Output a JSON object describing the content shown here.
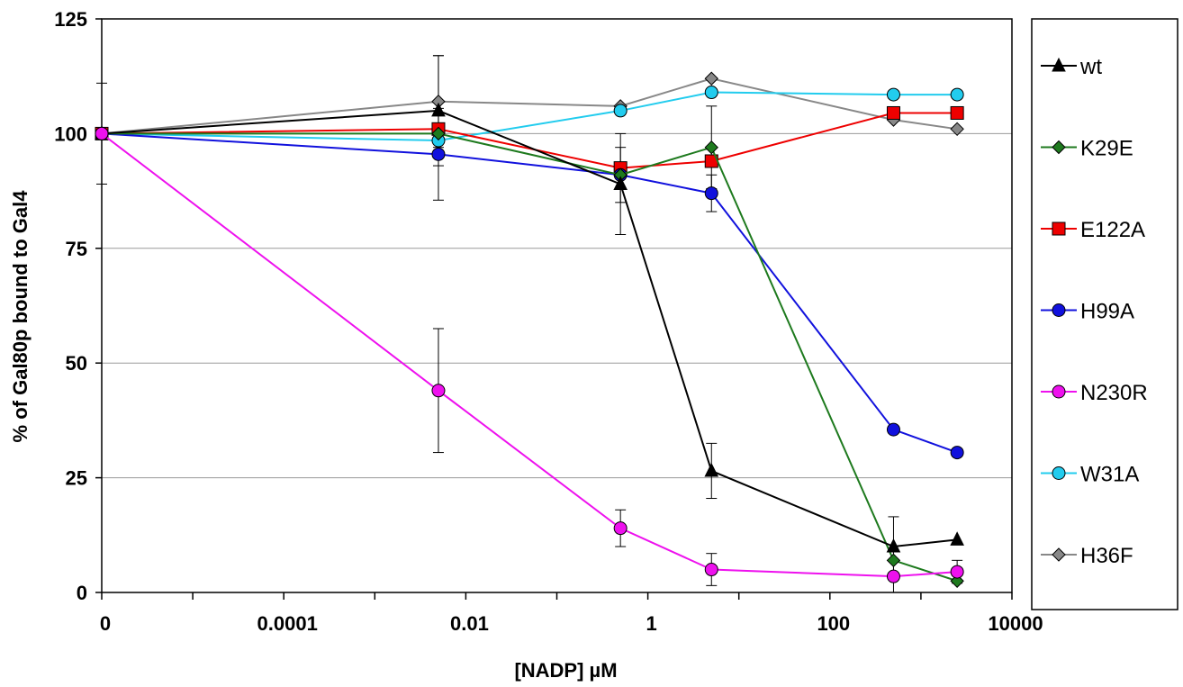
{
  "chart_data": {
    "type": "line",
    "title": "",
    "xlabel": "[NADP] µM",
    "ylabel": "% of Gal80p bound to Gal4",
    "x_scale": "log",
    "xlim": [
      1e-06,
      10000
    ],
    "ylim": [
      0,
      125
    ],
    "x_tick_values": [
      1e-06,
      0.0001,
      0.01,
      1,
      100,
      10000
    ],
    "x_tick_labels": [
      "0",
      "0.0001",
      "0.01",
      "1",
      "100",
      "10000"
    ],
    "y_tick_values": [
      0,
      25,
      50,
      75,
      100,
      125
    ],
    "y_tick_labels": [
      "0",
      "25",
      "50",
      "75",
      "100",
      "125"
    ],
    "grid": "horizontal",
    "legend_position": "right",
    "x": [
      1e-06,
      0.005,
      0.5,
      5,
      500,
      2500
    ],
    "series": [
      {
        "name": "wt",
        "color": "#000000",
        "marker": "triangle",
        "values": [
          100,
          105,
          89,
          26.5,
          10,
          11.5
        ],
        "errors": [
          11,
          12,
          11,
          6,
          6.5,
          null
        ]
      },
      {
        "name": "K29E",
        "color": "#1e7a1e",
        "marker": "diamond",
        "values": [
          100,
          100,
          91,
          97,
          7,
          2.5
        ],
        "errors": [
          null,
          null,
          null,
          9,
          null,
          null
        ]
      },
      {
        "name": "E122A",
        "color": "#ee0000",
        "marker": "square",
        "values": [
          100,
          101,
          92.5,
          94,
          104.5,
          104.5
        ],
        "errors": [
          null,
          null,
          null,
          null,
          null,
          null
        ]
      },
      {
        "name": "H99A",
        "color": "#1111dd",
        "marker": "circle",
        "values": [
          100,
          95.5,
          91,
          87,
          35.5,
          30.5
        ],
        "errors": [
          null,
          10,
          6,
          4,
          null,
          null
        ]
      },
      {
        "name": "N230R",
        "color": "#ee11ee",
        "marker": "circle",
        "values": [
          100,
          44,
          14,
          5,
          3.5,
          4.5
        ],
        "errors": [
          null,
          13.5,
          4,
          3.5,
          3.5,
          2.5
        ]
      },
      {
        "name": "W31A",
        "color": "#22ccee",
        "marker": "circle",
        "values": [
          100,
          98.5,
          105,
          109,
          108.5,
          108.5
        ],
        "errors": [
          null,
          null,
          null,
          null,
          null,
          null
        ]
      },
      {
        "name": "H36F",
        "color": "#888888",
        "marker": "diamond",
        "values": [
          100,
          107,
          106,
          112,
          103,
          101
        ],
        "errors": [
          null,
          10,
          null,
          null,
          null,
          null
        ]
      }
    ]
  }
}
